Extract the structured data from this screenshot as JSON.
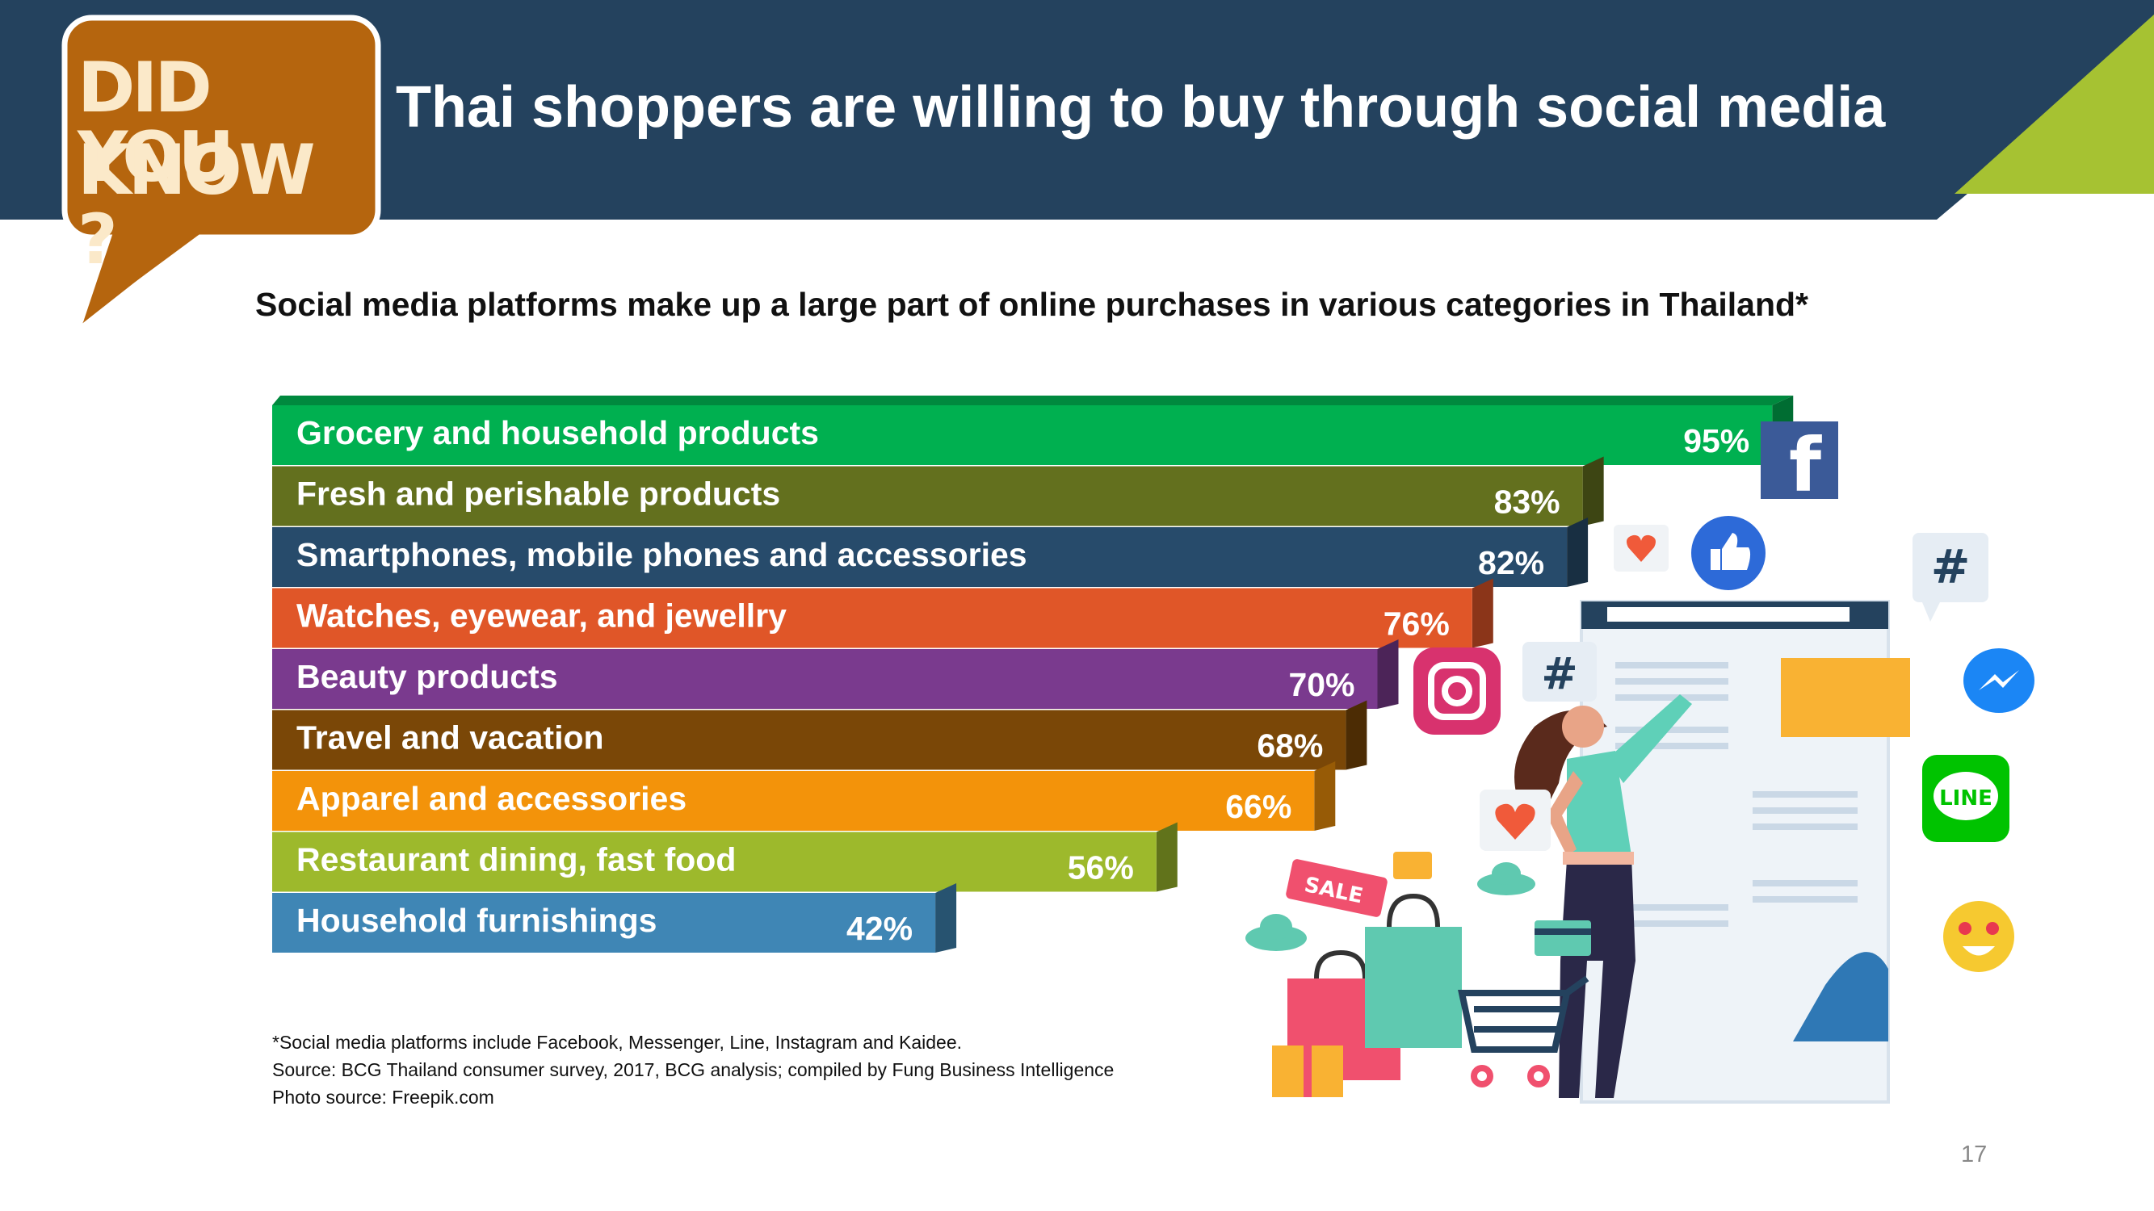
{
  "header": {
    "badge_line1": "DID YOU",
    "badge_line2": "KNOW ?",
    "title": "Thai shoppers are willing to buy through social media"
  },
  "chart_data": {
    "type": "bar",
    "orientation": "horizontal",
    "title": "Social media platforms make up a large part of online purchases in various categories in Thailand*",
    "categories": [
      "Grocery and household products",
      "Fresh and perishable products",
      "Smartphones, mobile phones and accessories",
      "Watches, eyewear, and jewellry",
      "Beauty products",
      "Travel and vacation",
      "Apparel and accessories",
      "Restaurant dining, fast food",
      "Household furnishings"
    ],
    "values": [
      95,
      83,
      82,
      76,
      70,
      68,
      66,
      56,
      42
    ],
    "value_labels": [
      "95%",
      "83%",
      "82%",
      "76%",
      "70%",
      "68%",
      "66%",
      "56%",
      "42%"
    ],
    "unit": "%",
    "xlim": [
      0,
      100
    ],
    "colors": [
      "#00b050",
      "#63701e",
      "#274b6b",
      "#e05628",
      "#7a3a8e",
      "#7a4707",
      "#f3930a",
      "#9db92c",
      "#3f86b5"
    ],
    "legend": "none",
    "grid": false
  },
  "footnotes": {
    "note": "*Social media platforms include Facebook, Messenger, Line, Instagram and Kaidee.",
    "source": "Source: BCG Thailand consumer survey, 2017, BCG analysis; compiled by Fung Business Intelligence",
    "photo": "Photo source:  Freepik.com"
  },
  "page_number": "17",
  "illustration": {
    "sale_tag": "SALE",
    "line_logo": "LINE",
    "hashtag": "#",
    "icons": [
      "facebook-icon",
      "like-icon",
      "instagram-icon",
      "messenger-icon",
      "line-icon",
      "hashtag-icon",
      "heart-icon",
      "emoji-icon",
      "shopping-cart-icon",
      "shopping-bag-icon",
      "gift-icon"
    ]
  },
  "colors": {
    "header_navy": "#24425e",
    "header_green": "#a6c232",
    "badge_orange": "#b5650e",
    "badge_text": "#fbe9c9"
  }
}
